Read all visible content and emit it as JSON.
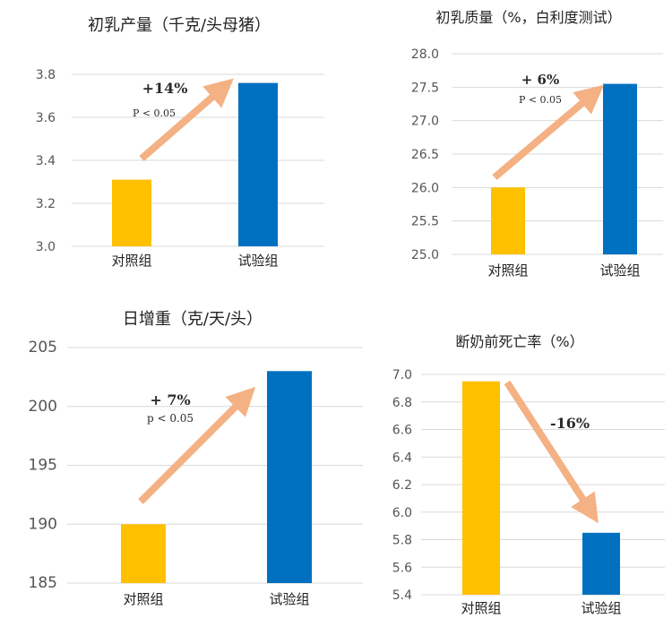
{
  "chart_data": [
    {
      "type": "bar",
      "title": "初乳产量（千克/头母猪）",
      "categories": [
        "对照组",
        "试验组"
      ],
      "values": [
        3.31,
        3.76
      ],
      "ylim": [
        3.0,
        3.8
      ],
      "yticks": [
        "3.0",
        "3.2",
        "3.4",
        "3.6",
        "3.8"
      ],
      "annotation": "+14%",
      "pvalue": "P < 0.05",
      "trend": "up",
      "colors": [
        "#FFC000",
        "#0070C0"
      ],
      "grid": true
    },
    {
      "type": "bar",
      "title": "初乳质量（%，白利度测试）",
      "categories": [
        "对照组",
        "试验组"
      ],
      "values": [
        26.0,
        27.55
      ],
      "ylim": [
        25.0,
        28.0
      ],
      "yticks": [
        "25.0",
        "25.5",
        "26.0",
        "26.5",
        "27.0",
        "27.5",
        "28.0"
      ],
      "annotation": "+ 6%",
      "pvalue": "P < 0.05",
      "trend": "up",
      "colors": [
        "#FFC000",
        "#0070C0"
      ],
      "grid": true
    },
    {
      "type": "bar",
      "title": "日增重（克/天/头）",
      "categories": [
        "对照组",
        "试验组"
      ],
      "values": [
        190,
        203
      ],
      "ylim": [
        185,
        205
      ],
      "yticks": [
        "185",
        "190",
        "195",
        "200",
        "205"
      ],
      "annotation": "+ 7%",
      "pvalue": "p < 0.05",
      "trend": "up",
      "colors": [
        "#FFC000",
        "#0070C0"
      ],
      "grid": true
    },
    {
      "type": "bar",
      "title": "断奶前死亡率（%）",
      "categories": [
        "对照组",
        "试验组"
      ],
      "values": [
        6.95,
        5.85
      ],
      "ylim": [
        5.4,
        7.0
      ],
      "yticks": [
        "5.4",
        "5.6",
        "5.8",
        "6.0",
        "6.2",
        "6.4",
        "6.6",
        "6.8",
        "7.0"
      ],
      "annotation": "-16%",
      "pvalue": "",
      "trend": "down",
      "colors": [
        "#FFC000",
        "#0070C0"
      ],
      "grid": true
    }
  ]
}
